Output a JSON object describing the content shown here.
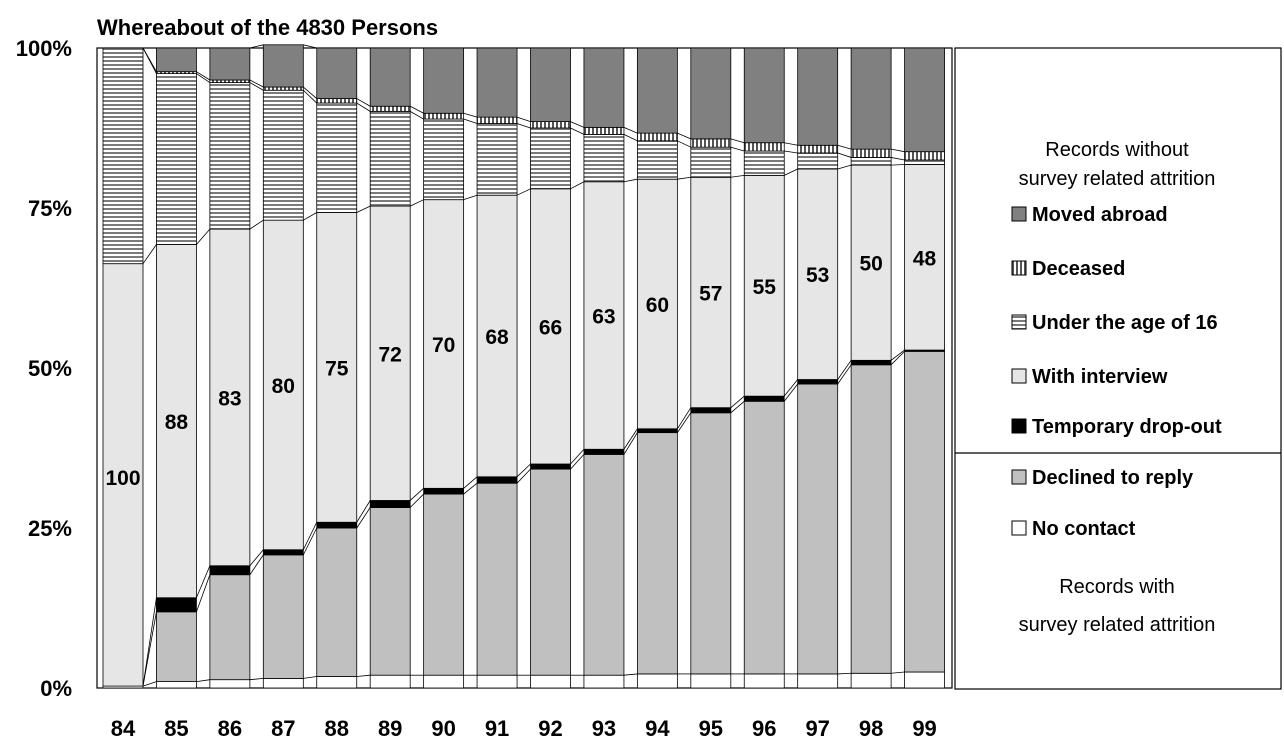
{
  "chart_data": {
    "type": "bar",
    "stacked": true,
    "percent_stacked": true,
    "title": "Whereabout of the 4830 Persons",
    "categories": [
      "84",
      "85",
      "86",
      "87",
      "88",
      "89",
      "90",
      "91",
      "92",
      "93",
      "94",
      "95",
      "96",
      "97",
      "98",
      "99"
    ],
    "y_ticks": [
      "0%",
      "25%",
      "50%",
      "75%",
      "100%"
    ],
    "ylim": [
      0,
      100
    ],
    "series": [
      {
        "name": "No contact",
        "color": "#ffffff",
        "values": [
          0.3,
          1.0,
          1.3,
          1.5,
          1.8,
          2.0,
          2.0,
          2.0,
          2.0,
          2.0,
          2.2,
          2.2,
          2.2,
          2.2,
          2.3,
          2.5
        ]
      },
      {
        "name": "Declined to reply",
        "color": "#c0c0c0",
        "values": [
          0,
          10.9,
          16.4,
          19.3,
          23.2,
          26.2,
          28.3,
          30.0,
          32.2,
          34.5,
          37.7,
          40.8,
          42.6,
          45.3,
          48.2,
          50.1
        ]
      },
      {
        "name": "Temporary drop-out",
        "color": "#000000",
        "values": [
          0,
          2.2,
          1.4,
          0.8,
          0.9,
          1.1,
          0.9,
          1.0,
          0.8,
          0.8,
          0.6,
          0.8,
          0.8,
          0.7,
          0.7,
          0.2
        ]
      },
      {
        "name": "With interview",
        "color": "#e6e6e6",
        "values": [
          66.0,
          55.2,
          52.6,
          51.5,
          48.4,
          46.0,
          45.1,
          44.0,
          43.0,
          41.8,
          39.0,
          36.0,
          34.5,
          32.9,
          30.5,
          29.0
        ]
      },
      {
        "name": "Under the age of 16",
        "color": "#999999",
        "values": [
          33.7,
          26.7,
          22.9,
          20.3,
          17.1,
          14.8,
          12.6,
          11.2,
          9.5,
          7.4,
          6.0,
          4.7,
          3.8,
          2.5,
          1.2,
          0.7
        ]
      },
      {
        "name": "Deceased",
        "color": "#cfcfcf",
        "values": [
          0,
          0.3,
          0.4,
          0.5,
          0.7,
          0.8,
          0.9,
          1.0,
          1.0,
          1.1,
          1.2,
          1.3,
          1.3,
          1.2,
          1.3,
          1.3
        ]
      },
      {
        "name": "Moved abroad",
        "color": "#808080",
        "values": [
          0,
          3.7,
          5.0,
          6.6,
          7.9,
          9.1,
          10.2,
          10.8,
          11.5,
          12.4,
          13.3,
          14.2,
          14.8,
          15.2,
          15.8,
          16.2
        ]
      }
    ],
    "data_labels": [
      "100",
      "88",
      "83",
      "80",
      "75",
      "72",
      "70",
      "68",
      "66",
      "63",
      "60",
      "57",
      "55",
      "53",
      "50",
      "48"
    ],
    "legend": {
      "placement": "right",
      "top_heading": [
        "Records without",
        "survey related attrition"
      ],
      "bottom_heading": [
        "Records with",
        "survey related attrition"
      ],
      "top_items": [
        "Moved abroad",
        "Deceased",
        "Under the age of 16",
        "With interview",
        "Temporary drop-out"
      ],
      "bottom_items": [
        "Declined to reply",
        "No contact"
      ]
    },
    "xlabel": "",
    "ylabel": ""
  }
}
